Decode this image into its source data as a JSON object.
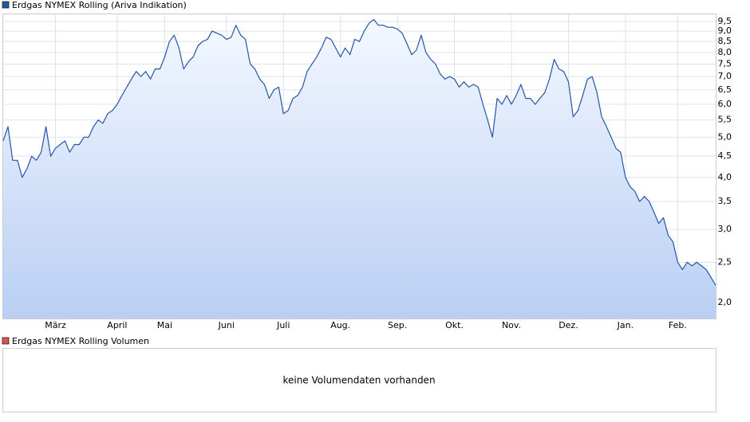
{
  "chart_data": {
    "type": "line",
    "yscale": "log",
    "grid": true,
    "series": [
      {
        "name": "Erdgas NYMEX Rolling (Ariva Indikation)",
        "color": "#2456a8",
        "values": [
          4.9,
          5.3,
          4.4,
          4.4,
          4.0,
          4.2,
          4.5,
          4.4,
          4.6,
          5.3,
          4.5,
          4.7,
          4.8,
          4.9,
          4.6,
          4.8,
          4.8,
          5.0,
          5.0,
          5.3,
          5.5,
          5.4,
          5.7,
          5.8,
          6.0,
          6.3,
          6.6,
          6.9,
          7.2,
          7.0,
          7.2,
          6.9,
          7.3,
          7.3,
          7.8,
          8.5,
          8.8,
          8.2,
          7.3,
          7.6,
          7.8,
          8.3,
          8.5,
          8.6,
          9.0,
          8.9,
          8.8,
          8.6,
          8.7,
          9.3,
          8.8,
          8.6,
          7.5,
          7.3,
          6.9,
          6.7,
          6.2,
          6.5,
          6.6,
          5.7,
          5.8,
          6.2,
          6.3,
          6.6,
          7.2,
          7.5,
          7.8,
          8.2,
          8.7,
          8.6,
          8.2,
          7.8,
          8.2,
          7.9,
          8.6,
          8.5,
          9.0,
          9.4,
          9.6,
          9.3,
          9.3,
          9.2,
          9.2,
          9.1,
          8.9,
          8.4,
          7.9,
          8.1,
          8.8,
          8.0,
          7.7,
          7.5,
          7.1,
          6.9,
          7.0,
          6.9,
          6.6,
          6.8,
          6.6,
          6.7,
          6.6,
          6.0,
          5.5,
          5.0,
          6.2,
          6.0,
          6.3,
          6.0,
          6.3,
          6.7,
          6.2,
          6.2,
          6.0,
          6.2,
          6.4,
          6.9,
          7.7,
          7.3,
          7.2,
          6.8,
          5.6,
          5.8,
          6.3,
          6.9,
          7.0,
          6.4,
          5.6,
          5.3,
          5.0,
          4.7,
          4.6,
          4.0,
          3.8,
          3.7,
          3.5,
          3.6,
          3.5,
          3.3,
          3.1,
          3.2,
          2.9,
          2.8,
          2.5,
          2.4,
          2.5,
          2.45,
          2.5,
          2.45,
          2.4,
          2.3,
          2.2
        ]
      }
    ],
    "categories": [
      null,
      null,
      null,
      null,
      null,
      null,
      null,
      null,
      null,
      null,
      null,
      "März",
      null,
      null,
      null,
      null,
      null,
      null,
      null,
      null,
      null,
      null,
      null,
      null,
      "April",
      null,
      null,
      null,
      null,
      null,
      null,
      null,
      null,
      null,
      "Mai",
      null,
      null,
      null,
      null,
      null,
      null,
      null,
      null,
      null,
      null,
      null,
      null,
      "Juni",
      null,
      null,
      null,
      null,
      null,
      null,
      null,
      null,
      null,
      null,
      null,
      "Juli",
      null,
      null,
      null,
      null,
      null,
      null,
      null,
      null,
      null,
      null,
      null,
      "Aug.",
      null,
      null,
      null,
      null,
      null,
      null,
      null,
      null,
      null,
      null,
      null,
      "Sep.",
      null,
      null,
      null,
      null,
      null,
      null,
      null,
      null,
      null,
      null,
      null,
      "Okt.",
      null,
      null,
      null,
      null,
      null,
      null,
      null,
      null,
      null,
      null,
      null,
      "Nov.",
      null,
      null,
      null,
      null,
      null,
      null,
      null,
      null,
      null,
      null,
      null,
      "Dez.",
      null,
      null,
      null,
      null,
      null,
      null,
      null,
      null,
      null,
      null,
      null,
      "Jan.",
      null,
      null,
      null,
      null,
      null,
      null,
      null,
      null,
      null,
      null,
      "Feb.",
      null,
      null,
      null,
      null,
      null,
      null,
      null,
      null
    ],
    "ylim": [
      1.83,
      9.88
    ],
    "yticks": [
      {
        "value": 2.0,
        "label": "2,0"
      },
      {
        "value": 2.5,
        "label": "2,5"
      },
      {
        "value": 3.0,
        "label": "3,0"
      },
      {
        "value": 3.5,
        "label": "3,5"
      },
      {
        "value": 4.0,
        "label": "4,0"
      },
      {
        "value": 4.5,
        "label": "4,5"
      },
      {
        "value": 5.0,
        "label": "5,0"
      },
      {
        "value": 5.5,
        "label": "5,5"
      },
      {
        "value": 6.0,
        "label": "6,0"
      },
      {
        "value": 6.5,
        "label": "6,5"
      },
      {
        "value": 7.0,
        "label": "7,0"
      },
      {
        "value": 7.5,
        "label": "7,5"
      },
      {
        "value": 8.0,
        "label": "8,0"
      },
      {
        "value": 8.5,
        "label": "8,5"
      },
      {
        "value": 9.0,
        "label": "9,0"
      },
      {
        "value": 9.5,
        "label": "9,5"
      }
    ]
  },
  "volume_panel": {
    "legend": "Erdgas NYMEX Rolling Volumen",
    "legend_color": "#d9534f",
    "message": "keine Volumendaten vorhanden"
  }
}
